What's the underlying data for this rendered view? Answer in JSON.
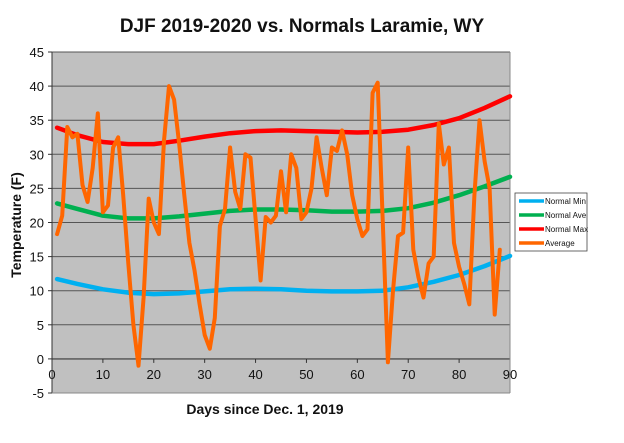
{
  "chart_data": {
    "type": "line",
    "title": "DJF 2019-2020 vs. Normals Laramie, WY",
    "xlabel": "Days since Dec. 1, 2019",
    "ylabel": "Temperature (F)",
    "xlim": [
      0,
      90
    ],
    "ylim": [
      -5,
      45
    ],
    "xticks": [
      0,
      10,
      20,
      30,
      40,
      50,
      60,
      70,
      80,
      90
    ],
    "yticks": [
      -5,
      0,
      5,
      10,
      15,
      20,
      25,
      30,
      35,
      40,
      45
    ],
    "grid": "horizontal",
    "plot_background": "#c0c0c0",
    "legend_position": "right",
    "series": [
      {
        "name": "Normal Min",
        "color": "#00b0f0",
        "x": [
          1,
          5,
          10,
          15,
          20,
          25,
          30,
          35,
          40,
          45,
          50,
          55,
          60,
          65,
          70,
          75,
          80,
          85,
          90
        ],
        "values": [
          11.7,
          11.0,
          10.2,
          9.7,
          9.5,
          9.6,
          9.9,
          10.2,
          10.3,
          10.2,
          10.0,
          9.9,
          9.9,
          10.0,
          10.5,
          11.3,
          12.3,
          13.6,
          15.1
        ]
      },
      {
        "name": "Normal Ave",
        "color": "#00b050",
        "x": [
          1,
          5,
          10,
          15,
          20,
          25,
          30,
          35,
          40,
          45,
          50,
          55,
          60,
          65,
          70,
          75,
          80,
          85,
          90
        ],
        "values": [
          22.8,
          22.0,
          21.0,
          20.6,
          20.6,
          20.9,
          21.3,
          21.7,
          21.9,
          21.9,
          21.8,
          21.6,
          21.6,
          21.7,
          22.1,
          22.9,
          24.0,
          25.3,
          26.7
        ]
      },
      {
        "name": "Normal Max",
        "color": "#ff0000",
        "x": [
          1,
          5,
          10,
          15,
          20,
          25,
          30,
          35,
          40,
          45,
          50,
          55,
          60,
          65,
          70,
          75,
          80,
          85,
          90
        ],
        "values": [
          33.9,
          32.8,
          31.8,
          31.5,
          31.5,
          32.0,
          32.6,
          33.1,
          33.4,
          33.5,
          33.4,
          33.3,
          33.2,
          33.3,
          33.6,
          34.3,
          35.3,
          36.8,
          38.5
        ]
      },
      {
        "name": "Average",
        "color": "#ff6600",
        "x": [
          1,
          2,
          3,
          4,
          5,
          6,
          7,
          8,
          9,
          10,
          11,
          12,
          13,
          14,
          15,
          16,
          17,
          18,
          19,
          20,
          21,
          22,
          23,
          24,
          25,
          26,
          27,
          28,
          29,
          30,
          31,
          32,
          33,
          34,
          35,
          36,
          37,
          38,
          39,
          40,
          41,
          42,
          43,
          44,
          45,
          46,
          47,
          48,
          49,
          50,
          51,
          52,
          53,
          54,
          55,
          56,
          57,
          58,
          59,
          60,
          61,
          62,
          63,
          64,
          65,
          66,
          67,
          68,
          69,
          70,
          71,
          72,
          73,
          74,
          75,
          76,
          77,
          78,
          79,
          80,
          81,
          82,
          83,
          84,
          85,
          86,
          87,
          88
        ],
        "values": [
          18.3,
          21.0,
          34.0,
          32.5,
          33.0,
          25.5,
          23.0,
          28.0,
          36.0,
          21.5,
          22.5,
          31.0,
          32.5,
          24.0,
          14.0,
          5.0,
          -1.0,
          9.0,
          23.5,
          20.0,
          18.3,
          32.0,
          40.0,
          38.0,
          31.5,
          24.0,
          17.0,
          13.0,
          8.0,
          3.5,
          1.5,
          6.0,
          19.5,
          22.0,
          31.0,
          24.5,
          22.0,
          30.0,
          29.5,
          20.5,
          11.5,
          20.8,
          20.0,
          21.0,
          27.5,
          21.5,
          30.0,
          28.0,
          20.5,
          21.5,
          25.0,
          32.5,
          28.0,
          24.0,
          31.0,
          30.5,
          33.5,
          30.0,
          24.0,
          20.5,
          18.0,
          19.0,
          39.0,
          40.5,
          20.0,
          -0.5,
          10.0,
          18.0,
          18.5,
          31.0,
          16.0,
          12.0,
          9.0,
          14.0,
          15.0,
          34.5,
          28.5,
          31.0,
          17.0,
          13.5,
          11.0,
          8.0,
          24.0,
          35.0,
          29.0,
          25.0,
          6.5,
          16.0
        ]
      }
    ]
  }
}
